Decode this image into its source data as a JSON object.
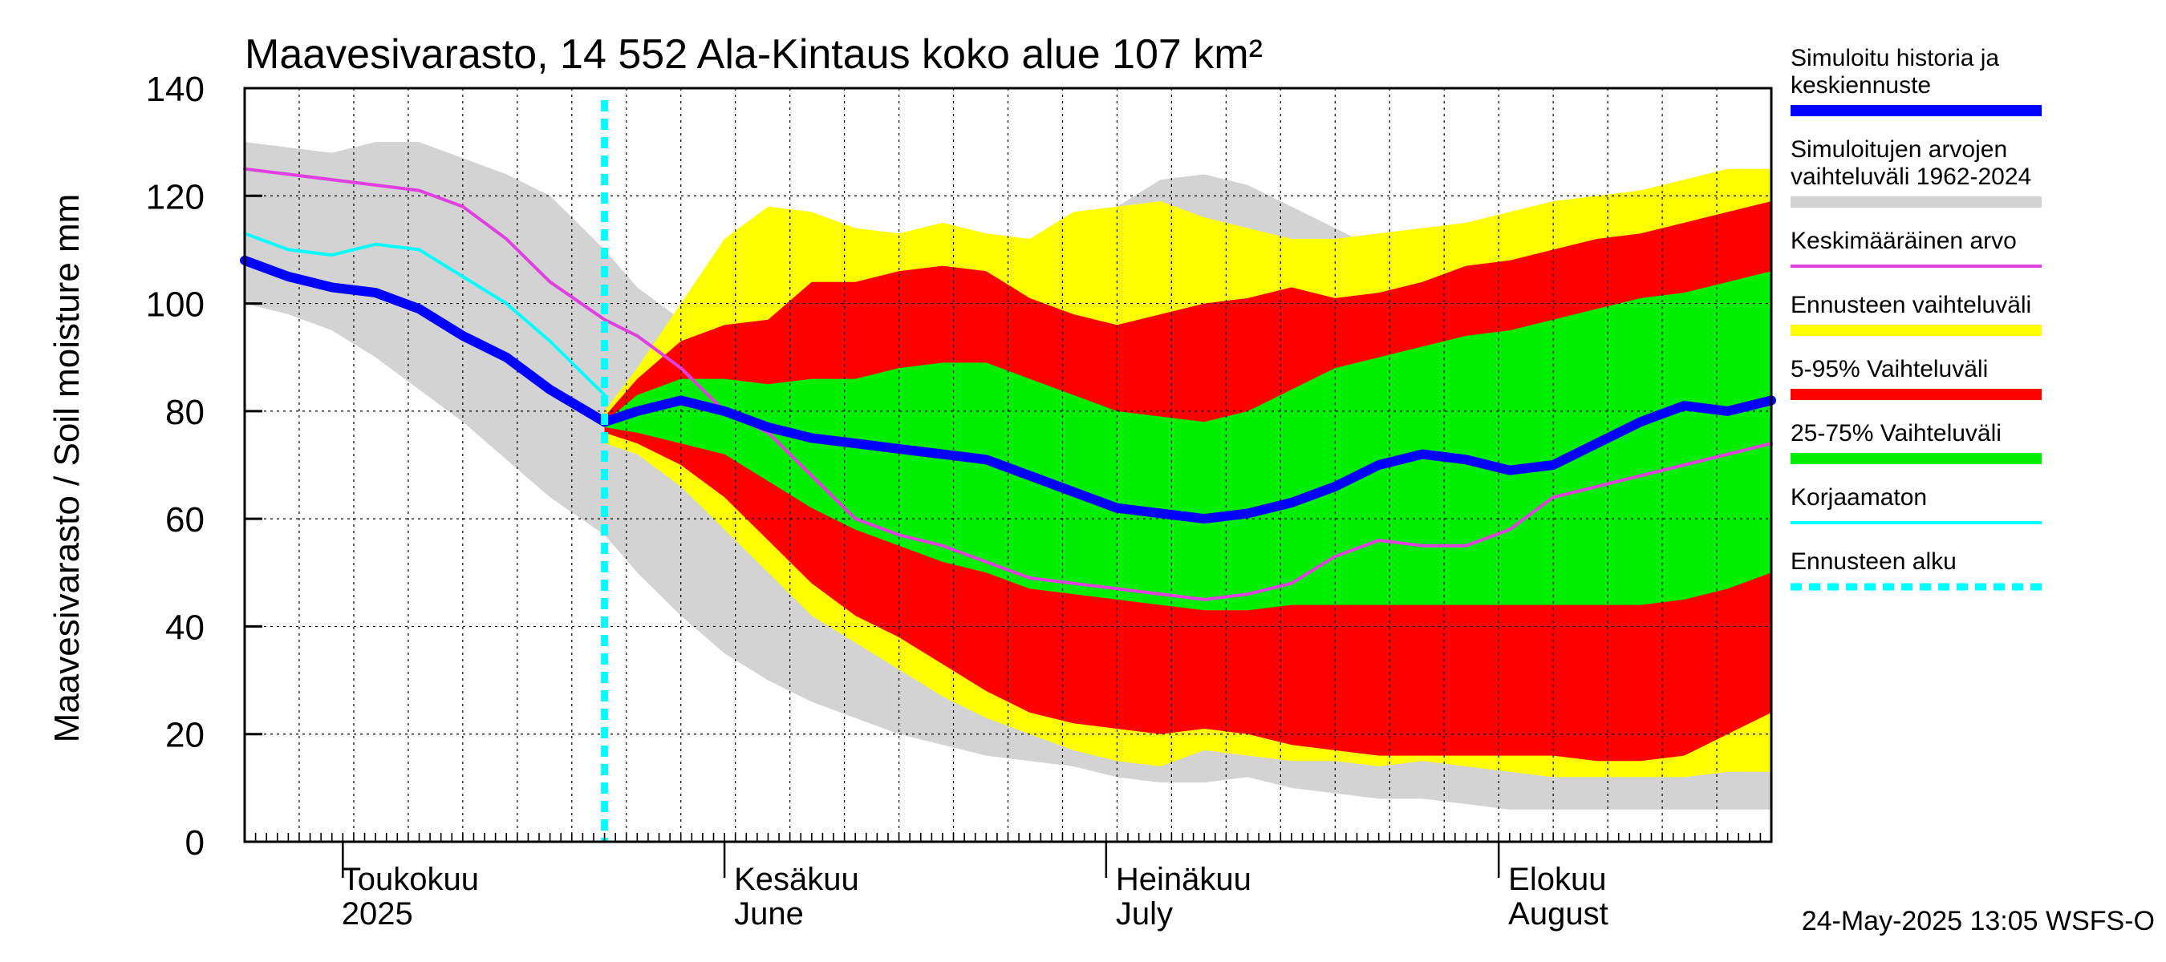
{
  "chart_data": {
    "type": "area",
    "title": "Maavesivarasto, 14 552 Ala-Kintaus koko alue 107 km²",
    "ylabel": "Maavesivarasto / Soil moisture   mm",
    "ylim": [
      0,
      140
    ],
    "yticks": [
      0,
      20,
      40,
      60,
      80,
      100,
      120,
      140
    ],
    "x_range_days": [
      0,
      140
    ],
    "forecast_start_day": 33,
    "x_month_labels": [
      {
        "day": 8,
        "line1": "Toukokuu",
        "line2": "2025"
      },
      {
        "day": 44,
        "line1": "Kesäkuu",
        "line2": "June"
      },
      {
        "day": 79,
        "line1": "Heinäkuu",
        "line2": "July"
      },
      {
        "day": 115,
        "line1": "Elokuu",
        "line2": "August"
      }
    ],
    "x": [
      0,
      4,
      8,
      12,
      16,
      20,
      24,
      28,
      33,
      36,
      40,
      44,
      48,
      52,
      56,
      60,
      64,
      68,
      72,
      76,
      80,
      84,
      88,
      92,
      96,
      100,
      104,
      108,
      112,
      116,
      120,
      124,
      128,
      132,
      136,
      140
    ],
    "series": [
      {
        "name": "Simuloitujen arvojen vaihteluväli 1962-2024",
        "kind": "band",
        "color": "#d3d3d3",
        "lower": [
          100,
          98,
          95,
          90,
          84,
          78,
          71,
          64,
          57,
          50,
          42,
          35,
          30,
          26,
          23,
          20,
          18,
          16,
          15,
          14,
          12,
          11,
          11,
          12,
          10,
          9,
          8,
          8,
          7,
          6,
          6,
          6,
          6,
          6,
          6,
          6
        ],
        "upper": [
          130,
          129,
          128,
          130,
          130,
          127,
          124,
          120,
          110,
          103,
          97,
          100,
          105,
          108,
          110,
          112,
          115,
          112,
          110,
          114,
          118,
          123,
          124,
          122,
          118,
          114,
          110,
          109,
          110,
          113,
          116,
          119,
          121,
          123,
          124,
          125
        ]
      },
      {
        "name": "Ennusteen vaihteluväli",
        "kind": "band",
        "color": "#ffff00",
        "lower": [
          null,
          null,
          null,
          null,
          null,
          null,
          null,
          null,
          74,
          72,
          66,
          58,
          50,
          42,
          37,
          32,
          27,
          23,
          20,
          17,
          15,
          14,
          17,
          16,
          15,
          15,
          14,
          15,
          14,
          13,
          12,
          12,
          12,
          12,
          13,
          13
        ],
        "upper": [
          null,
          null,
          null,
          null,
          null,
          null,
          null,
          null,
          80,
          88,
          100,
          112,
          118,
          117,
          114,
          113,
          115,
          113,
          112,
          117,
          118,
          119,
          116,
          114,
          112,
          112,
          113,
          114,
          115,
          117,
          119,
          120,
          121,
          123,
          125,
          125
        ]
      },
      {
        "name": "5-95% Vaihteluväli",
        "kind": "band",
        "color": "#ff0000",
        "lower": [
          null,
          null,
          null,
          null,
          null,
          null,
          null,
          null,
          76,
          74,
          70,
          64,
          56,
          48,
          42,
          38,
          33,
          28,
          24,
          22,
          21,
          20,
          21,
          20,
          18,
          17,
          16,
          16,
          16,
          16,
          16,
          15,
          15,
          16,
          20,
          24
        ],
        "upper": [
          null,
          null,
          null,
          null,
          null,
          null,
          null,
          null,
          79,
          86,
          93,
          96,
          97,
          104,
          104,
          106,
          107,
          106,
          101,
          98,
          96,
          98,
          100,
          101,
          103,
          101,
          102,
          104,
          107,
          108,
          110,
          112,
          113,
          115,
          117,
          119
        ]
      },
      {
        "name": "25-75% Vaihteluväli",
        "kind": "band",
        "color": "#00ee00",
        "lower": [
          null,
          null,
          null,
          null,
          null,
          null,
          null,
          null,
          77,
          76,
          74,
          72,
          67,
          62,
          58,
          55,
          52,
          50,
          47,
          46,
          45,
          44,
          43,
          43,
          44,
          44,
          44,
          44,
          44,
          44,
          44,
          44,
          44,
          45,
          47,
          50
        ],
        "upper": [
          null,
          null,
          null,
          null,
          null,
          null,
          null,
          null,
          78,
          83,
          86,
          86,
          85,
          86,
          86,
          88,
          89,
          89,
          86,
          83,
          80,
          79,
          78,
          80,
          84,
          88,
          90,
          92,
          94,
          95,
          97,
          99,
          101,
          102,
          104,
          106
        ]
      },
      {
        "name": "Keskimääräinen arvo",
        "kind": "line",
        "color": "#e040e0",
        "width": 4,
        "values": [
          125,
          124,
          123,
          122,
          121,
          118,
          112,
          104,
          97,
          94,
          88,
          80,
          76,
          68,
          60,
          57,
          55,
          52,
          49,
          48,
          47,
          46,
          45,
          46,
          48,
          53,
          56,
          55,
          55,
          58,
          64,
          66,
          68,
          70,
          72,
          74
        ]
      },
      {
        "name": "Korjaamaton",
        "kind": "line",
        "color": "#00ffff",
        "width": 4,
        "x_end_day": 33,
        "values": [
          113,
          110,
          109,
          111,
          110,
          105,
          100,
          93,
          83,
          null,
          null,
          null,
          null,
          null,
          null,
          null,
          null,
          null,
          null,
          null,
          null,
          null,
          null,
          null,
          null,
          null,
          null,
          null,
          null,
          null,
          null,
          null,
          null,
          null,
          null,
          null
        ]
      },
      {
        "name": "Simuloitu historia ja keskiennuste",
        "kind": "line",
        "color": "#0000ff",
        "width": 12,
        "values": [
          108,
          105,
          103,
          102,
          99,
          94,
          90,
          84,
          78,
          80,
          82,
          80,
          77,
          75,
          74,
          73,
          72,
          71,
          68,
          65,
          62,
          61,
          60,
          61,
          63,
          66,
          70,
          72,
          71,
          69,
          70,
          74,
          78,
          81,
          80,
          82
        ]
      }
    ],
    "legend": [
      {
        "label_lines": [
          "Simuloitu historia ja",
          "keskiennuste"
        ],
        "color": "#0000ff",
        "style": "thick"
      },
      {
        "label_lines": [
          "Simuloitujen arvojen",
          "vaihteluväli 1962-2024"
        ],
        "color": "#d3d3d3",
        "style": "thick"
      },
      {
        "label_lines": [
          "Keskimääräinen arvo"
        ],
        "color": "#e040e0",
        "style": "thin"
      },
      {
        "label_lines": [
          "Ennusteen vaihteluväli"
        ],
        "color": "#ffff00",
        "style": "thick"
      },
      {
        "label_lines": [
          "5-95% Vaihteluväli"
        ],
        "color": "#ff0000",
        "style": "thick"
      },
      {
        "label_lines": [
          "25-75% Vaihteluväli"
        ],
        "color": "#00ee00",
        "style": "thick"
      },
      {
        "label_lines": [
          "Korjaamaton"
        ],
        "color": "#00ffff",
        "style": "thin"
      },
      {
        "label_lines": [
          "Ennusteen alku"
        ],
        "color": "#00ffff",
        "style": "dashed"
      }
    ],
    "footer": "24-May-2025 13:05 WSFS-O"
  }
}
